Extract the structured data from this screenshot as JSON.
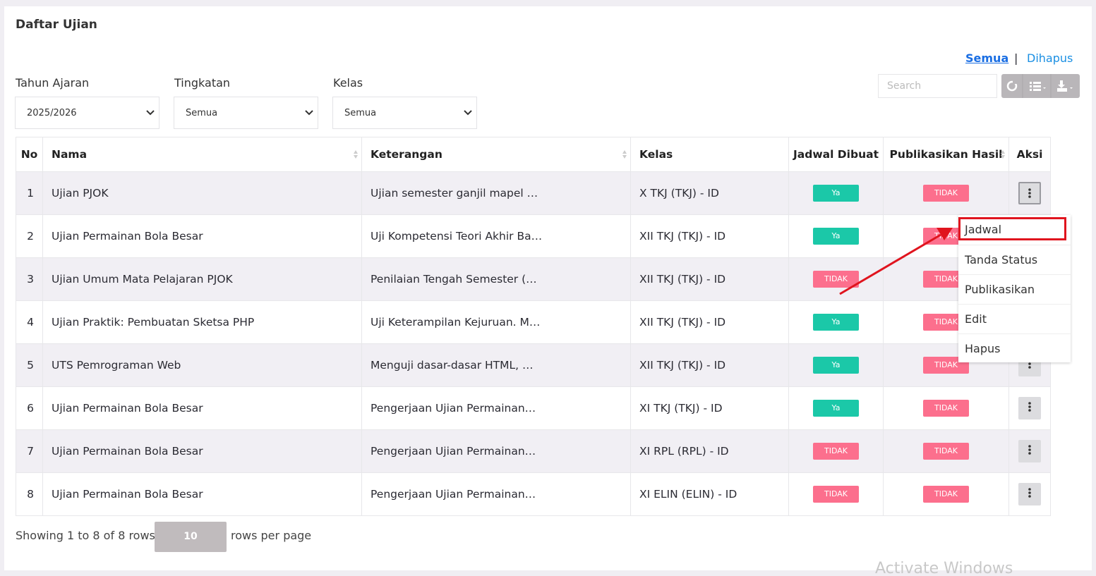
{
  "header": {
    "title": "Daftar Ujian",
    "tabs": [
      "Semua",
      "Dihapus"
    ],
    "separator": "|"
  },
  "filters": [
    {
      "label": "Tahun Ajaran",
      "value": "2025/2026"
    },
    {
      "label": "Tingkatan",
      "value": "Semua"
    },
    {
      "label": "Kelas",
      "value": "Semua"
    }
  ],
  "search": {
    "placeholder": "Search"
  },
  "table": {
    "columns": [
      "No",
      "Nama",
      "Keterangan",
      "Kelas",
      "Jadwal Dibuat",
      "Publikasikan Hasil",
      "Aksi"
    ],
    "rows": [
      [
        1,
        "Ujian PJOK",
        "Ujian semester ganjil mapel …",
        "X TKJ (TKJ) - ID",
        "Ya",
        "TIDAK"
      ],
      [
        2,
        "Ujian Permainan Bola Besar",
        "Uji Kompetensi Teori Akhir Ba…",
        "XII TKJ (TKJ) - ID",
        "Ya",
        "TIDAK"
      ],
      [
        3,
        "Ujian Umum Mata Pelajaran PJOK",
        "Penilaian Tengah Semester (…",
        "XII TKJ (TKJ) - ID",
        "TIDAK",
        "TIDAK"
      ],
      [
        4,
        "Ujian Praktik: Pembuatan Sketsa PHP",
        "Uji Keterampilan Kejuruan. M…",
        "XII TKJ (TKJ) - ID",
        "Ya",
        "TIDAK"
      ],
      [
        5,
        "UTS Pemrograman Web",
        "Menguji dasar-dasar HTML, …",
        "XII TKJ (TKJ) - ID",
        "Ya",
        "TIDAK"
      ],
      [
        6,
        "Ujian Permainan Bola Besar",
        "Pengerjaan Ujian Permainan…",
        "XI TKJ (TKJ) - ID",
        "Ya",
        "TIDAK"
      ],
      [
        7,
        "Ujian Permainan Bola Besar",
        "Pengerjaan Ujian Permainan…",
        "XI RPL (RPL) - ID",
        "TIDAK",
        "TIDAK"
      ],
      [
        8,
        "Ujian Permainan Bola Besar",
        "Pengerjaan Ujian Permainan…",
        "XI ELIN (ELIN) - ID",
        "TIDAK",
        "TIDAK"
      ]
    ]
  },
  "menu": {
    "items": [
      "Jadwal",
      "Tanda Status",
      "Publikasikan",
      "Edit",
      "Hapus"
    ]
  },
  "footer": {
    "showing": "Showing 1 to 8 of 8 rows",
    "page_size": 10,
    "suffix": "rows per page"
  },
  "watermark": "Activate Windows"
}
